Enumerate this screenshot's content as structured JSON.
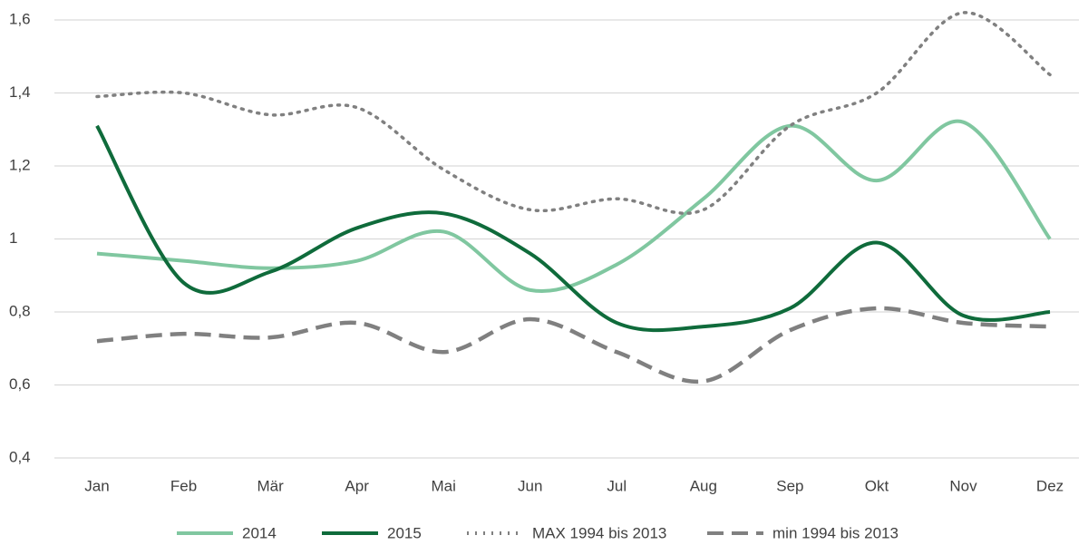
{
  "chart_data": {
    "type": "line",
    "categories": [
      "Jan",
      "Feb",
      "Mär",
      "Apr",
      "Mai",
      "Jun",
      "Jul",
      "Aug",
      "Sep",
      "Okt",
      "Nov",
      "Dez"
    ],
    "series": [
      {
        "name": "2014",
        "color": "#80c7a0",
        "style": "solid",
        "values": [
          0.96,
          0.94,
          0.92,
          0.94,
          1.02,
          0.86,
          0.93,
          1.11,
          1.31,
          1.16,
          1.32,
          1.0
        ]
      },
      {
        "name": "2015",
        "color": "#0f6b3b",
        "style": "solid",
        "values": [
          1.31,
          0.88,
          0.91,
          1.03,
          1.07,
          0.96,
          0.77,
          0.76,
          0.81,
          0.99,
          0.79,
          0.8
        ]
      },
      {
        "name": "MAX 1994 bis 2013",
        "color": "#808080",
        "style": "dotted",
        "values": [
          1.39,
          1.4,
          1.34,
          1.36,
          1.19,
          1.08,
          1.11,
          1.08,
          1.31,
          1.4,
          1.62,
          1.45
        ]
      },
      {
        "name": "min 1994 bis 2013",
        "color": "#808080",
        "style": "dashed",
        "values": [
          0.72,
          0.74,
          0.73,
          0.77,
          0.69,
          0.78,
          0.69,
          0.61,
          0.75,
          0.81,
          0.77,
          0.76
        ]
      }
    ],
    "ylim": [
      0.4,
      1.6
    ],
    "yticks": [
      {
        "value": 0.4,
        "label": "0,4"
      },
      {
        "value": 0.6,
        "label": "0,6"
      },
      {
        "value": 0.8,
        "label": "0,8"
      },
      1,
      {
        "value": 1.2,
        "label": "1,2"
      },
      {
        "value": 1.4,
        "label": "1,4"
      },
      {
        "value": 1.6,
        "label": "1,6"
      }
    ],
    "grid": true,
    "legend": "bottom"
  }
}
